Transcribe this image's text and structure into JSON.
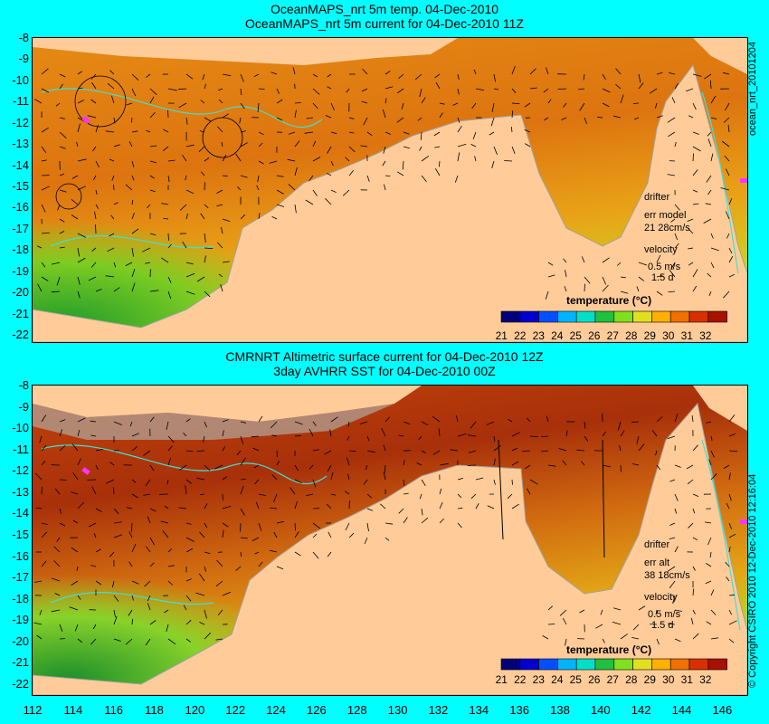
{
  "top": {
    "title1": "OceanMAPS_nrt 5m temp. 04-Dec-2010",
    "title2": "OceanMAPS_nrt 5m current for 04-Dec-2010 11Z",
    "side_label": "ocean_nrt_20101204",
    "drifter_label": "drifter",
    "err_label": "err model",
    "err_value": "21 28cm/s",
    "velocity_label": "velocity",
    "velocity_scale": "0.5 m/s",
    "velocity_days": "1.5 d"
  },
  "bottom": {
    "title1": "CMRNRT Altimetric surface current for 04-Dec-2010 12Z",
    "title2": "3day AVHRR SST for 04-Dec-2010 00Z",
    "side_label": "© Copyright CSIRO 2010 12-Dec-2010 12:16:04",
    "drifter_label": "drifter",
    "err_label": "err alt",
    "err_value": "38 18cm/s",
    "velocity_label": "velocity",
    "velocity_scale": "0.5 m/s",
    "velocity_days": "1.5 d"
  },
  "legend": {
    "title": "temperature (°C)",
    "ticks": [
      "21",
      "22",
      "23",
      "24",
      "25",
      "26",
      "27",
      "28",
      "29",
      "30",
      "31",
      "32"
    ]
  },
  "y_ticks": [
    "-8",
    "-9",
    "-10",
    "-11",
    "-12",
    "-13",
    "-14",
    "-15",
    "-16",
    "-17",
    "-18",
    "-19",
    "-20",
    "-21",
    "-22"
  ],
  "x_ticks": [
    "112",
    "114",
    "116",
    "118",
    "120",
    "122",
    "124",
    "126",
    "128",
    "130",
    "132",
    "134",
    "136",
    "138",
    "140",
    "142",
    "144",
    "146"
  ],
  "colors": {
    "background": "#00ffff",
    "land": "#ffcc99",
    "ocean_warm": "#e07a10",
    "ocean_hot": "#b5330a",
    "ocean_cool": "#9ad21c",
    "ocean_green": "#2aa030",
    "drifter": "#ff33ff"
  }
}
